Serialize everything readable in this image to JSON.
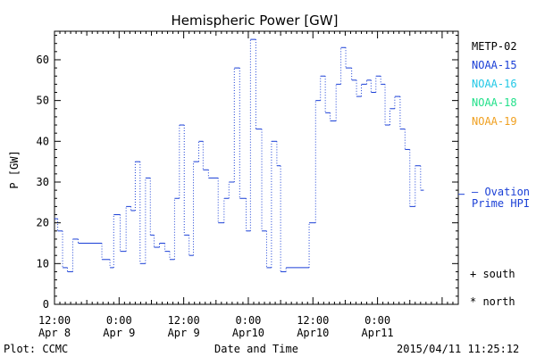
{
  "chart_data": {
    "type": "line",
    "title": "Hemispheric Power [GW]",
    "xlabel": "Date and Time",
    "ylabel": "P [GW]",
    "ylim": [
      0,
      67
    ],
    "yticks": [
      0,
      10,
      20,
      30,
      40,
      50,
      60
    ],
    "x_unit": "hours since 2015-04-08 12:00 UT",
    "xlim": [
      0,
      75
    ],
    "xticks": [
      {
        "x": 0,
        "line1": "12:00",
        "line2": "Apr 8"
      },
      {
        "x": 12,
        "line1": "0:00",
        "line2": "Apr 9"
      },
      {
        "x": 24,
        "line1": "12:00",
        "line2": "Apr 9"
      },
      {
        "x": 36,
        "line1": "0:00",
        "line2": "Apr10"
      },
      {
        "x": 48,
        "line1": "12:00",
        "line2": "Apr10"
      },
      {
        "x": 60,
        "line1": "0:00",
        "line2": "Apr11"
      }
    ],
    "legend": [
      {
        "name": "METP-02",
        "color": "#000000"
      },
      {
        "name": "NOAA-15",
        "color": "#1a3fd6"
      },
      {
        "name": "NOAA-16",
        "color": "#22c8e6"
      },
      {
        "name": "NOAA-18",
        "color": "#22e08a"
      },
      {
        "name": "NOAA-19",
        "color": "#f0a020"
      }
    ],
    "legend_placement": "right",
    "annotations": {
      "ovation_line1": "— Ovation",
      "ovation_line2": "Prime HPI",
      "ovation_value": 27,
      "south_marker": "+ south",
      "north_marker": "* north"
    },
    "footer": {
      "left": "Plot: CCMC",
      "right": "2015/04/11 11:25:12"
    },
    "series": [
      {
        "name": "NOAA-15",
        "color": "#1a3fd6",
        "steps": [
          [
            0,
            21
          ],
          [
            0.6,
            18
          ],
          [
            1.5,
            9
          ],
          [
            2.4,
            8
          ],
          [
            3.4,
            16
          ],
          [
            4.4,
            15
          ],
          [
            8.8,
            11
          ],
          [
            10.3,
            9
          ],
          [
            11.0,
            22
          ],
          [
            12.2,
            13
          ],
          [
            13.3,
            24
          ],
          [
            14.2,
            23
          ],
          [
            15.0,
            35
          ],
          [
            15.9,
            10
          ],
          [
            16.9,
            31
          ],
          [
            17.8,
            17
          ],
          [
            18.5,
            14
          ],
          [
            19.5,
            15
          ],
          [
            20.5,
            13
          ],
          [
            21.4,
            11
          ],
          [
            22.3,
            26
          ],
          [
            23.2,
            44
          ],
          [
            24.1,
            17
          ],
          [
            25.0,
            12
          ],
          [
            25.8,
            35
          ],
          [
            26.8,
            40
          ],
          [
            27.6,
            33
          ],
          [
            28.6,
            31
          ],
          [
            30.4,
            20
          ],
          [
            31.5,
            26
          ],
          [
            32.4,
            30
          ],
          [
            33.4,
            58
          ],
          [
            34.4,
            26
          ],
          [
            35.6,
            18
          ],
          [
            36.4,
            65
          ],
          [
            37.4,
            43
          ],
          [
            38.5,
            18
          ],
          [
            39.4,
            9
          ],
          [
            40.3,
            40
          ],
          [
            41.3,
            34
          ],
          [
            42.0,
            8
          ],
          [
            43.0,
            9
          ],
          [
            47.3,
            20
          ],
          [
            48.5,
            50
          ],
          [
            49.4,
            56
          ],
          [
            50.3,
            47
          ],
          [
            51.2,
            45
          ],
          [
            52.3,
            54
          ],
          [
            53.2,
            63
          ],
          [
            54.1,
            58
          ],
          [
            55.2,
            55
          ],
          [
            56.1,
            51
          ],
          [
            57.0,
            54
          ],
          [
            58.0,
            55
          ],
          [
            58.8,
            52
          ],
          [
            59.7,
            56
          ],
          [
            60.6,
            54
          ],
          [
            61.4,
            44
          ],
          [
            62.3,
            48
          ],
          [
            63.2,
            51
          ],
          [
            64.2,
            43
          ],
          [
            65.1,
            38
          ],
          [
            66.0,
            24
          ],
          [
            67.0,
            34
          ],
          [
            68.0,
            28
          ]
        ]
      }
    ]
  }
}
